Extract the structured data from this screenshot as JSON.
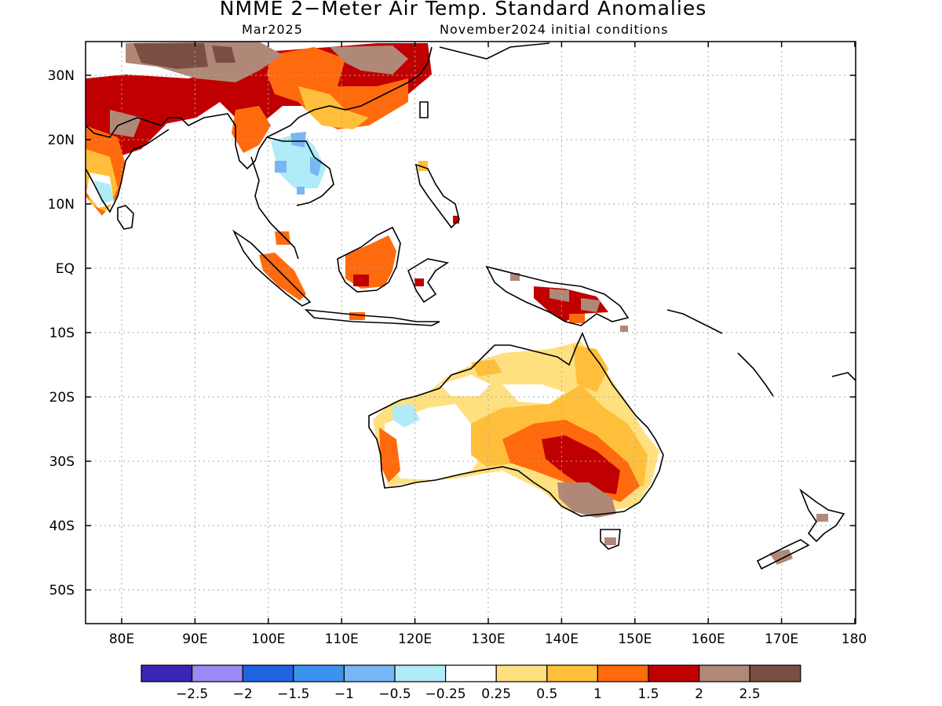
{
  "title": "NMME 2−Meter Air Temp. Standard Anomalies",
  "subtitle_left": "Mar2025",
  "subtitle_right": "November2024 initial conditions",
  "lat_ticks": [
    "30N",
    "20N",
    "10N",
    "EQ",
    "10S",
    "20S",
    "30S",
    "40S",
    "50S"
  ],
  "lon_ticks": [
    "80E",
    "90E",
    "100E",
    "110E",
    "120E",
    "130E",
    "140E",
    "150E",
    "160E",
    "170E",
    "180"
  ],
  "colorbar": {
    "colors": [
      "#3a26b6",
      "#9b89f5",
      "#1f63e0",
      "#3c93ee",
      "#78b7f5",
      "#b0ecf8",
      "#ffffff",
      "#ffe080",
      "#ffbf3a",
      "#ff6a0e",
      "#c00000",
      "#b08878",
      "#7a4f42"
    ],
    "labels": [
      "−2.5",
      "−2",
      "−1.5",
      "−1",
      "−0.5",
      "−0.25",
      "0.25",
      "0.5",
      "1",
      "1.5",
      "2",
      "2.5"
    ]
  },
  "colors": {
    "land_outline": "#000000",
    "grid": "#aaaaaa"
  }
}
